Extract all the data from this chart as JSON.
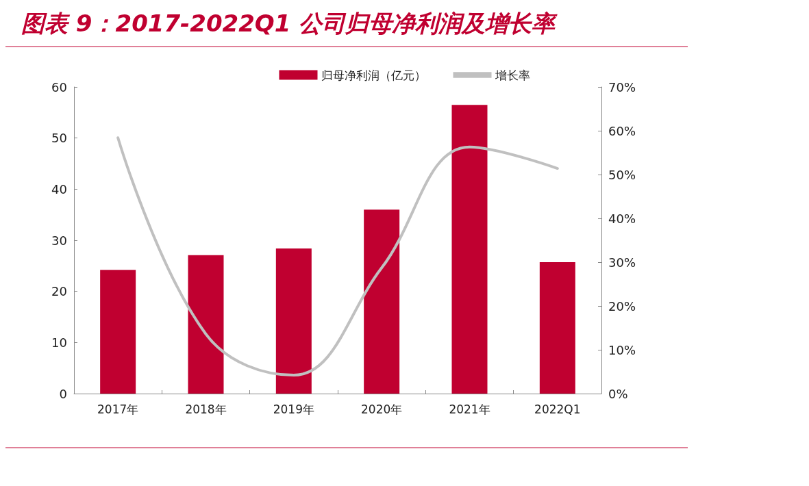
{
  "chart_data": {
    "type": "bar",
    "title": "图表 9：2017-2022Q1 公司归母净利润及增长率",
    "categories": [
      "2017年",
      "2018年",
      "2019年",
      "2020年",
      "2021年",
      "2022Q1"
    ],
    "series": [
      {
        "name": "归母净利润（亿元）",
        "color": "#c00030",
        "values": [
          24.2,
          27.1,
          28.4,
          36.0,
          56.5,
          25.7
        ]
      },
      {
        "name": "增长率",
        "type": "line",
        "axis": "y2",
        "color": "#c0c0c0",
        "values": [
          58.4,
          13.6,
          4.2,
          28.7,
          56.3,
          51.4
        ]
      }
    ],
    "ylim": [
      0,
      60
    ],
    "yticks": [
      0,
      10,
      20,
      30,
      40,
      50,
      60
    ],
    "y2lim": [
      0,
      70
    ],
    "y2ticks": [
      {
        "value": 0,
        "label": "0%"
      },
      {
        "value": 10,
        "label": "10%"
      },
      {
        "value": 20,
        "label": "20%"
      },
      {
        "value": 30,
        "label": "30%"
      },
      {
        "value": 40,
        "label": "40%"
      },
      {
        "value": 50,
        "label": "50%"
      },
      {
        "value": 60,
        "label": "60%"
      },
      {
        "value": 70,
        "label": "70%"
      }
    ],
    "grid": false,
    "legend": "top",
    "marker": "none"
  }
}
